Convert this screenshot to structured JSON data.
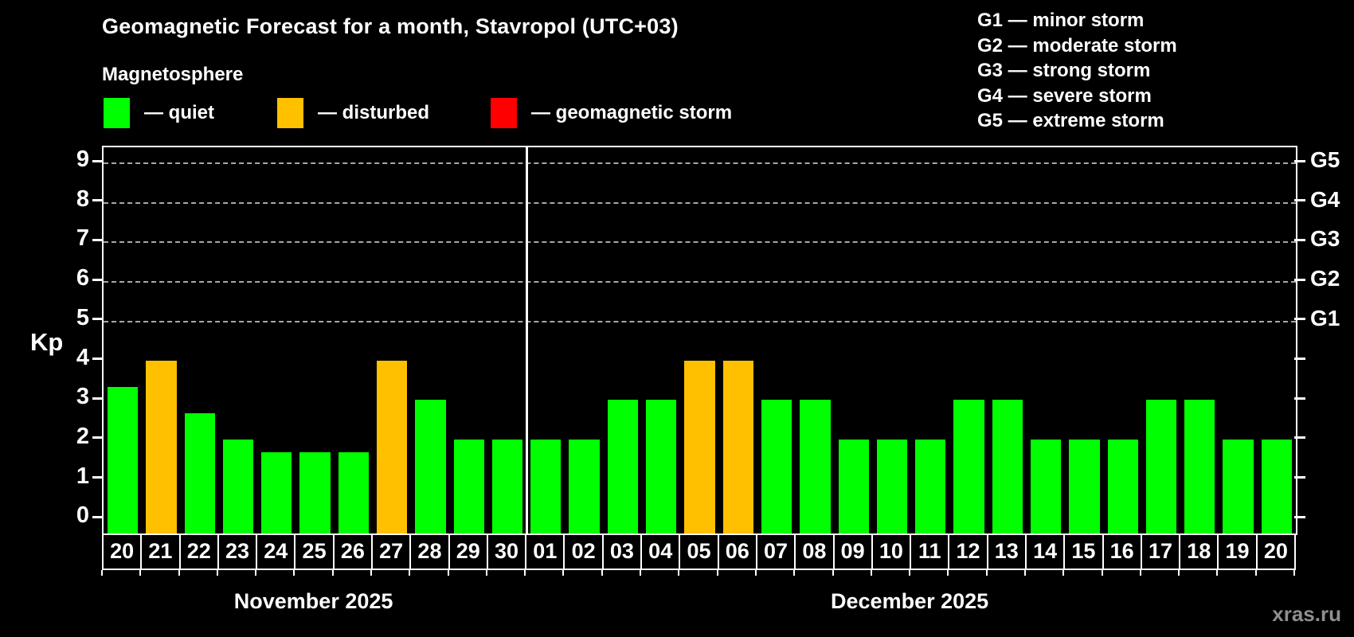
{
  "title": "Geomagnetic Forecast for a month, Stavropol (UTC+03)",
  "subtitle": "Magnetosphere",
  "legend": {
    "quiet_label": "— quiet",
    "disturbed_label": "— disturbed",
    "storm_label": "— geomagnetic storm"
  },
  "g_legend": [
    {
      "label": "G1 — minor storm"
    },
    {
      "label": "G2 — moderate storm"
    },
    {
      "label": "G3 — strong storm"
    },
    {
      "label": "G4 — severe storm"
    },
    {
      "label": "G5 — extreme storm"
    }
  ],
  "watermark": "xras.ru",
  "chart_data": {
    "type": "bar",
    "title": "Geomagnetic Forecast for a month, Stavropol (UTC+03)",
    "ylabel": "Kp",
    "ylim": [
      0,
      9
    ],
    "y_ticks": [
      0,
      1,
      2,
      3,
      4,
      5,
      6,
      7,
      8,
      9
    ],
    "gridlines_at": [
      5,
      6,
      7,
      8,
      9
    ],
    "grid": "dashed horizontal at storm levels",
    "legend_position": "top-left",
    "legend_colors": {
      "quiet": "#00ff00",
      "disturbed": "#ffc000",
      "storm": "#ff0000"
    },
    "right_axis_labels": [
      {
        "kp": 5,
        "label": "G1"
      },
      {
        "kp": 6,
        "label": "G2"
      },
      {
        "kp": 7,
        "label": "G3"
      },
      {
        "kp": 8,
        "label": "G4"
      },
      {
        "kp": 9,
        "label": "G5"
      }
    ],
    "months": [
      {
        "label": "November 2025",
        "days": 11
      },
      {
        "label": "December 2025",
        "days": 20
      }
    ],
    "days": [
      {
        "day": "20",
        "month": "November 2025",
        "kp": 3.33,
        "status": "quiet"
      },
      {
        "day": "21",
        "month": "November 2025",
        "kp": 4,
        "status": "disturbed"
      },
      {
        "day": "22",
        "month": "November 2025",
        "kp": 2.67,
        "status": "quiet"
      },
      {
        "day": "23",
        "month": "November 2025",
        "kp": 2,
        "status": "quiet"
      },
      {
        "day": "24",
        "month": "November 2025",
        "kp": 1.67,
        "status": "quiet"
      },
      {
        "day": "25",
        "month": "November 2025",
        "kp": 1.67,
        "status": "quiet"
      },
      {
        "day": "26",
        "month": "November 2025",
        "kp": 1.67,
        "status": "quiet"
      },
      {
        "day": "27",
        "month": "November 2025",
        "kp": 4,
        "status": "disturbed"
      },
      {
        "day": "28",
        "month": "November 2025",
        "kp": 3,
        "status": "quiet"
      },
      {
        "day": "29",
        "month": "November 2025",
        "kp": 2,
        "status": "quiet"
      },
      {
        "day": "30",
        "month": "November 2025",
        "kp": 2,
        "status": "quiet"
      },
      {
        "day": "01",
        "month": "December 2025",
        "kp": 2,
        "status": "quiet"
      },
      {
        "day": "02",
        "month": "December 2025",
        "kp": 2,
        "status": "quiet"
      },
      {
        "day": "03",
        "month": "December 2025",
        "kp": 3,
        "status": "quiet"
      },
      {
        "day": "04",
        "month": "December 2025",
        "kp": 3,
        "status": "quiet"
      },
      {
        "day": "05",
        "month": "December 2025",
        "kp": 4,
        "status": "disturbed"
      },
      {
        "day": "06",
        "month": "December 2025",
        "kp": 4,
        "status": "disturbed"
      },
      {
        "day": "07",
        "month": "December 2025",
        "kp": 3,
        "status": "quiet"
      },
      {
        "day": "08",
        "month": "December 2025",
        "kp": 3,
        "status": "quiet"
      },
      {
        "day": "09",
        "month": "December 2025",
        "kp": 2,
        "status": "quiet"
      },
      {
        "day": "10",
        "month": "December 2025",
        "kp": 2,
        "status": "quiet"
      },
      {
        "day": "11",
        "month": "December 2025",
        "kp": 2,
        "status": "quiet"
      },
      {
        "day": "12",
        "month": "December 2025",
        "kp": 3,
        "status": "quiet"
      },
      {
        "day": "13",
        "month": "December 2025",
        "kp": 3,
        "status": "quiet"
      },
      {
        "day": "14",
        "month": "December 2025",
        "kp": 2,
        "status": "quiet"
      },
      {
        "day": "15",
        "month": "December 2025",
        "kp": 2,
        "status": "quiet"
      },
      {
        "day": "16",
        "month": "December 2025",
        "kp": 2,
        "status": "quiet"
      },
      {
        "day": "17",
        "month": "December 2025",
        "kp": 3,
        "status": "quiet"
      },
      {
        "day": "18",
        "month": "December 2025",
        "kp": 3,
        "status": "quiet"
      },
      {
        "day": "19",
        "month": "December 2025",
        "kp": 2,
        "status": "quiet"
      },
      {
        "day": "20",
        "month": "December 2025",
        "kp": 2,
        "status": "quiet"
      }
    ]
  }
}
